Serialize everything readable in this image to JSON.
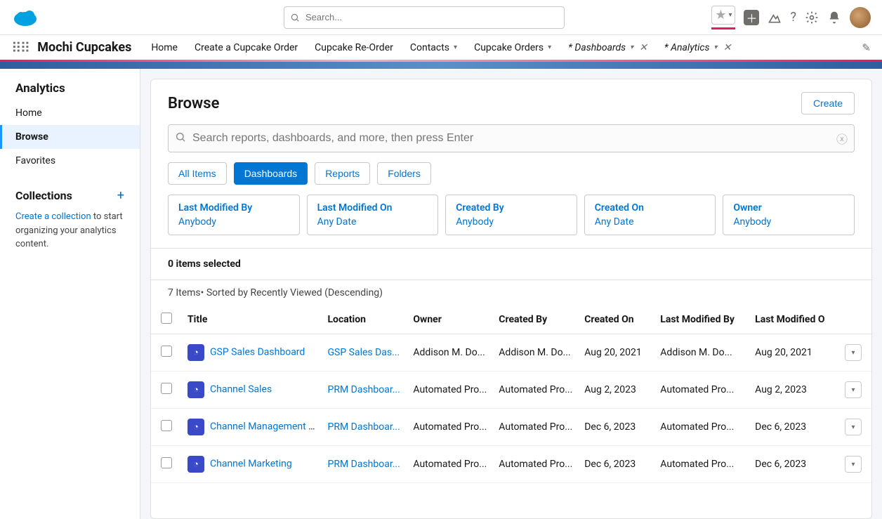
{
  "global_search_placeholder": "Search...",
  "app_name": "Mochi Cupcakes",
  "nav": [
    {
      "label": "Home",
      "chevron": false
    },
    {
      "label": "Create a Cupcake Order",
      "chevron": false
    },
    {
      "label": "Cupcake Re-Order",
      "chevron": false
    },
    {
      "label": "Contacts",
      "chevron": true
    },
    {
      "label": "Cupcake Orders",
      "chevron": true
    },
    {
      "label": "* Dashboards",
      "chevron": true,
      "close": true,
      "italic": true
    },
    {
      "label": "* Analytics",
      "chevron": true,
      "close": true,
      "italic": true
    }
  ],
  "sidebar": {
    "title": "Analytics",
    "items": [
      {
        "label": "Home",
        "active": false
      },
      {
        "label": "Browse",
        "active": true
      },
      {
        "label": "Favorites",
        "active": false
      }
    ],
    "collections_title": "Collections",
    "create_link": "Create a collection",
    "collections_text_suffix": " to start organizing your analytics content."
  },
  "main": {
    "title": "Browse",
    "create_btn": "Create",
    "search_placeholder": "Search reports, dashboards, and more, then press Enter",
    "tabs": [
      {
        "label": "All Items",
        "active": false
      },
      {
        "label": "Dashboards",
        "active": true
      },
      {
        "label": "Reports",
        "active": false
      },
      {
        "label": "Folders",
        "active": false
      }
    ],
    "filters": [
      {
        "label": "Last Modified By",
        "value": "Anybody"
      },
      {
        "label": "Last Modified On",
        "value": "Any Date"
      },
      {
        "label": "Created By",
        "value": "Anybody"
      },
      {
        "label": "Created On",
        "value": "Any Date"
      },
      {
        "label": "Owner",
        "value": "Anybody"
      }
    ],
    "selected_text": "0 items selected",
    "sort_text": "7 Items• Sorted by Recently Viewed (Descending)",
    "columns": [
      "Title",
      "Location",
      "Owner",
      "Created By",
      "Created On",
      "Last Modified By",
      "Last Modified O"
    ],
    "rows": [
      {
        "title": "GSP Sales Dashboard",
        "location": "GSP Sales Das...",
        "owner": "Addison M. Do...",
        "created_by": "Addison M. Do...",
        "created_on": "Aug 20, 2021",
        "modified_by": "Addison M. Do...",
        "modified_on": "Aug 20, 2021"
      },
      {
        "title": "Channel Sales",
        "location": "PRM Dashboar...",
        "owner": "Automated Pro...",
        "created_by": "Automated Pro...",
        "created_on": "Aug 2, 2023",
        "modified_by": "Automated Pro...",
        "modified_on": "Aug 2, 2023"
      },
      {
        "title": "Channel Management Ov...",
        "location": "PRM Dashboar...",
        "owner": "Automated Pro...",
        "created_by": "Automated Pro...",
        "created_on": "Dec 6, 2023",
        "modified_by": "Automated Pro...",
        "modified_on": "Dec 6, 2023"
      },
      {
        "title": "Channel Marketing",
        "location": "PRM Dashboar...",
        "owner": "Automated Pro...",
        "created_by": "Automated Pro...",
        "created_on": "Dec 6, 2023",
        "modified_by": "Automated Pro...",
        "modified_on": "Dec 6, 2023"
      }
    ]
  }
}
